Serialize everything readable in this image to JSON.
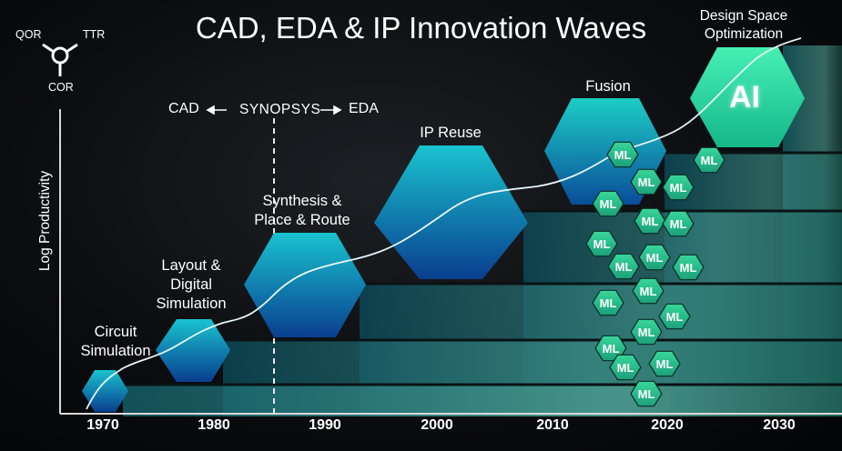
{
  "title": "CAD, EDA & IP Innovation Waves",
  "y_axis_label": "Log Productivity",
  "x_axis": {
    "ticks": [
      "1970",
      "1980",
      "1990",
      "2000",
      "2010",
      "2020",
      "2030"
    ]
  },
  "triad": {
    "top_left": "QOR",
    "top_right": "TTR",
    "bottom": "COR"
  },
  "legend": {
    "left": "CAD",
    "center": "SYNOPSYS",
    "right": "EDA"
  },
  "waves": [
    {
      "label_lines": [
        "Circuit",
        "Simulation"
      ]
    },
    {
      "label_lines": [
        "Layout &",
        "Digital",
        "Simulation"
      ]
    },
    {
      "label_lines": [
        "Synthesis &",
        "Place & Route"
      ]
    },
    {
      "label_lines": [
        "IP Reuse"
      ]
    },
    {
      "label_lines": [
        "Fusion"
      ]
    },
    {
      "label_lines": [
        "Design Space",
        "Optimization"
      ]
    }
  ],
  "ai_label": "AI",
  "ml_label": "ML",
  "colors": {
    "wave_blue": "#0b7fb5",
    "wave_teal": "#19c3c5",
    "ai_green": "#2ee6a5",
    "ml_green": "#2fc58e"
  }
}
